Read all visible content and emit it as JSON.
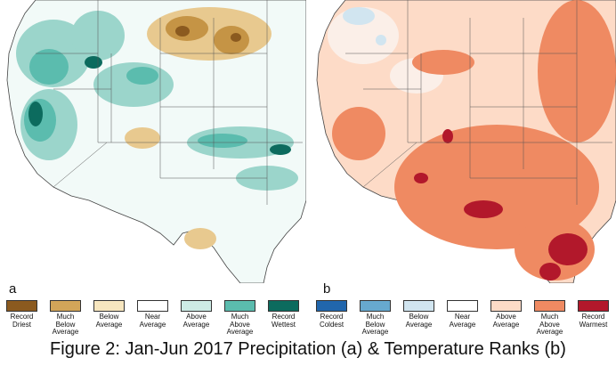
{
  "panels": {
    "a": {
      "letter": "a",
      "legend": [
        {
          "label": "Record\nDriest",
          "color": "#8b5a1f"
        },
        {
          "label": "Much\nBelow\nAverage",
          "color": "#d2a559"
        },
        {
          "label": "Below\nAverage",
          "color": "#f7e6bf"
        },
        {
          "label": "Near\nAverage",
          "color": "#ffffff"
        },
        {
          "label": "Above\nAverage",
          "color": "#cdebe5"
        },
        {
          "label": "Much\nAbove\nAverage",
          "color": "#5bbcae"
        },
        {
          "label": "Record\nWettest",
          "color": "#0c6b5e"
        }
      ]
    },
    "b": {
      "letter": "b",
      "legend": [
        {
          "label": "Record\nColdest",
          "color": "#2166ac"
        },
        {
          "label": "Much\nBelow\nAverage",
          "color": "#67a9cf"
        },
        {
          "label": "Below\nAverage",
          "color": "#d1e5f0"
        },
        {
          "label": "Near\nAverage",
          "color": "#ffffff"
        },
        {
          "label": "Above\nAverage",
          "color": "#fddbc7"
        },
        {
          "label": "Much\nAbove\nAverage",
          "color": "#ef8a62"
        },
        {
          "label": "Record\nWarmest",
          "color": "#b2182b"
        }
      ]
    }
  },
  "caption": "Figure 2: Jan-Jun 2017 Precipitation (a) & Temperature Ranks (b)"
}
